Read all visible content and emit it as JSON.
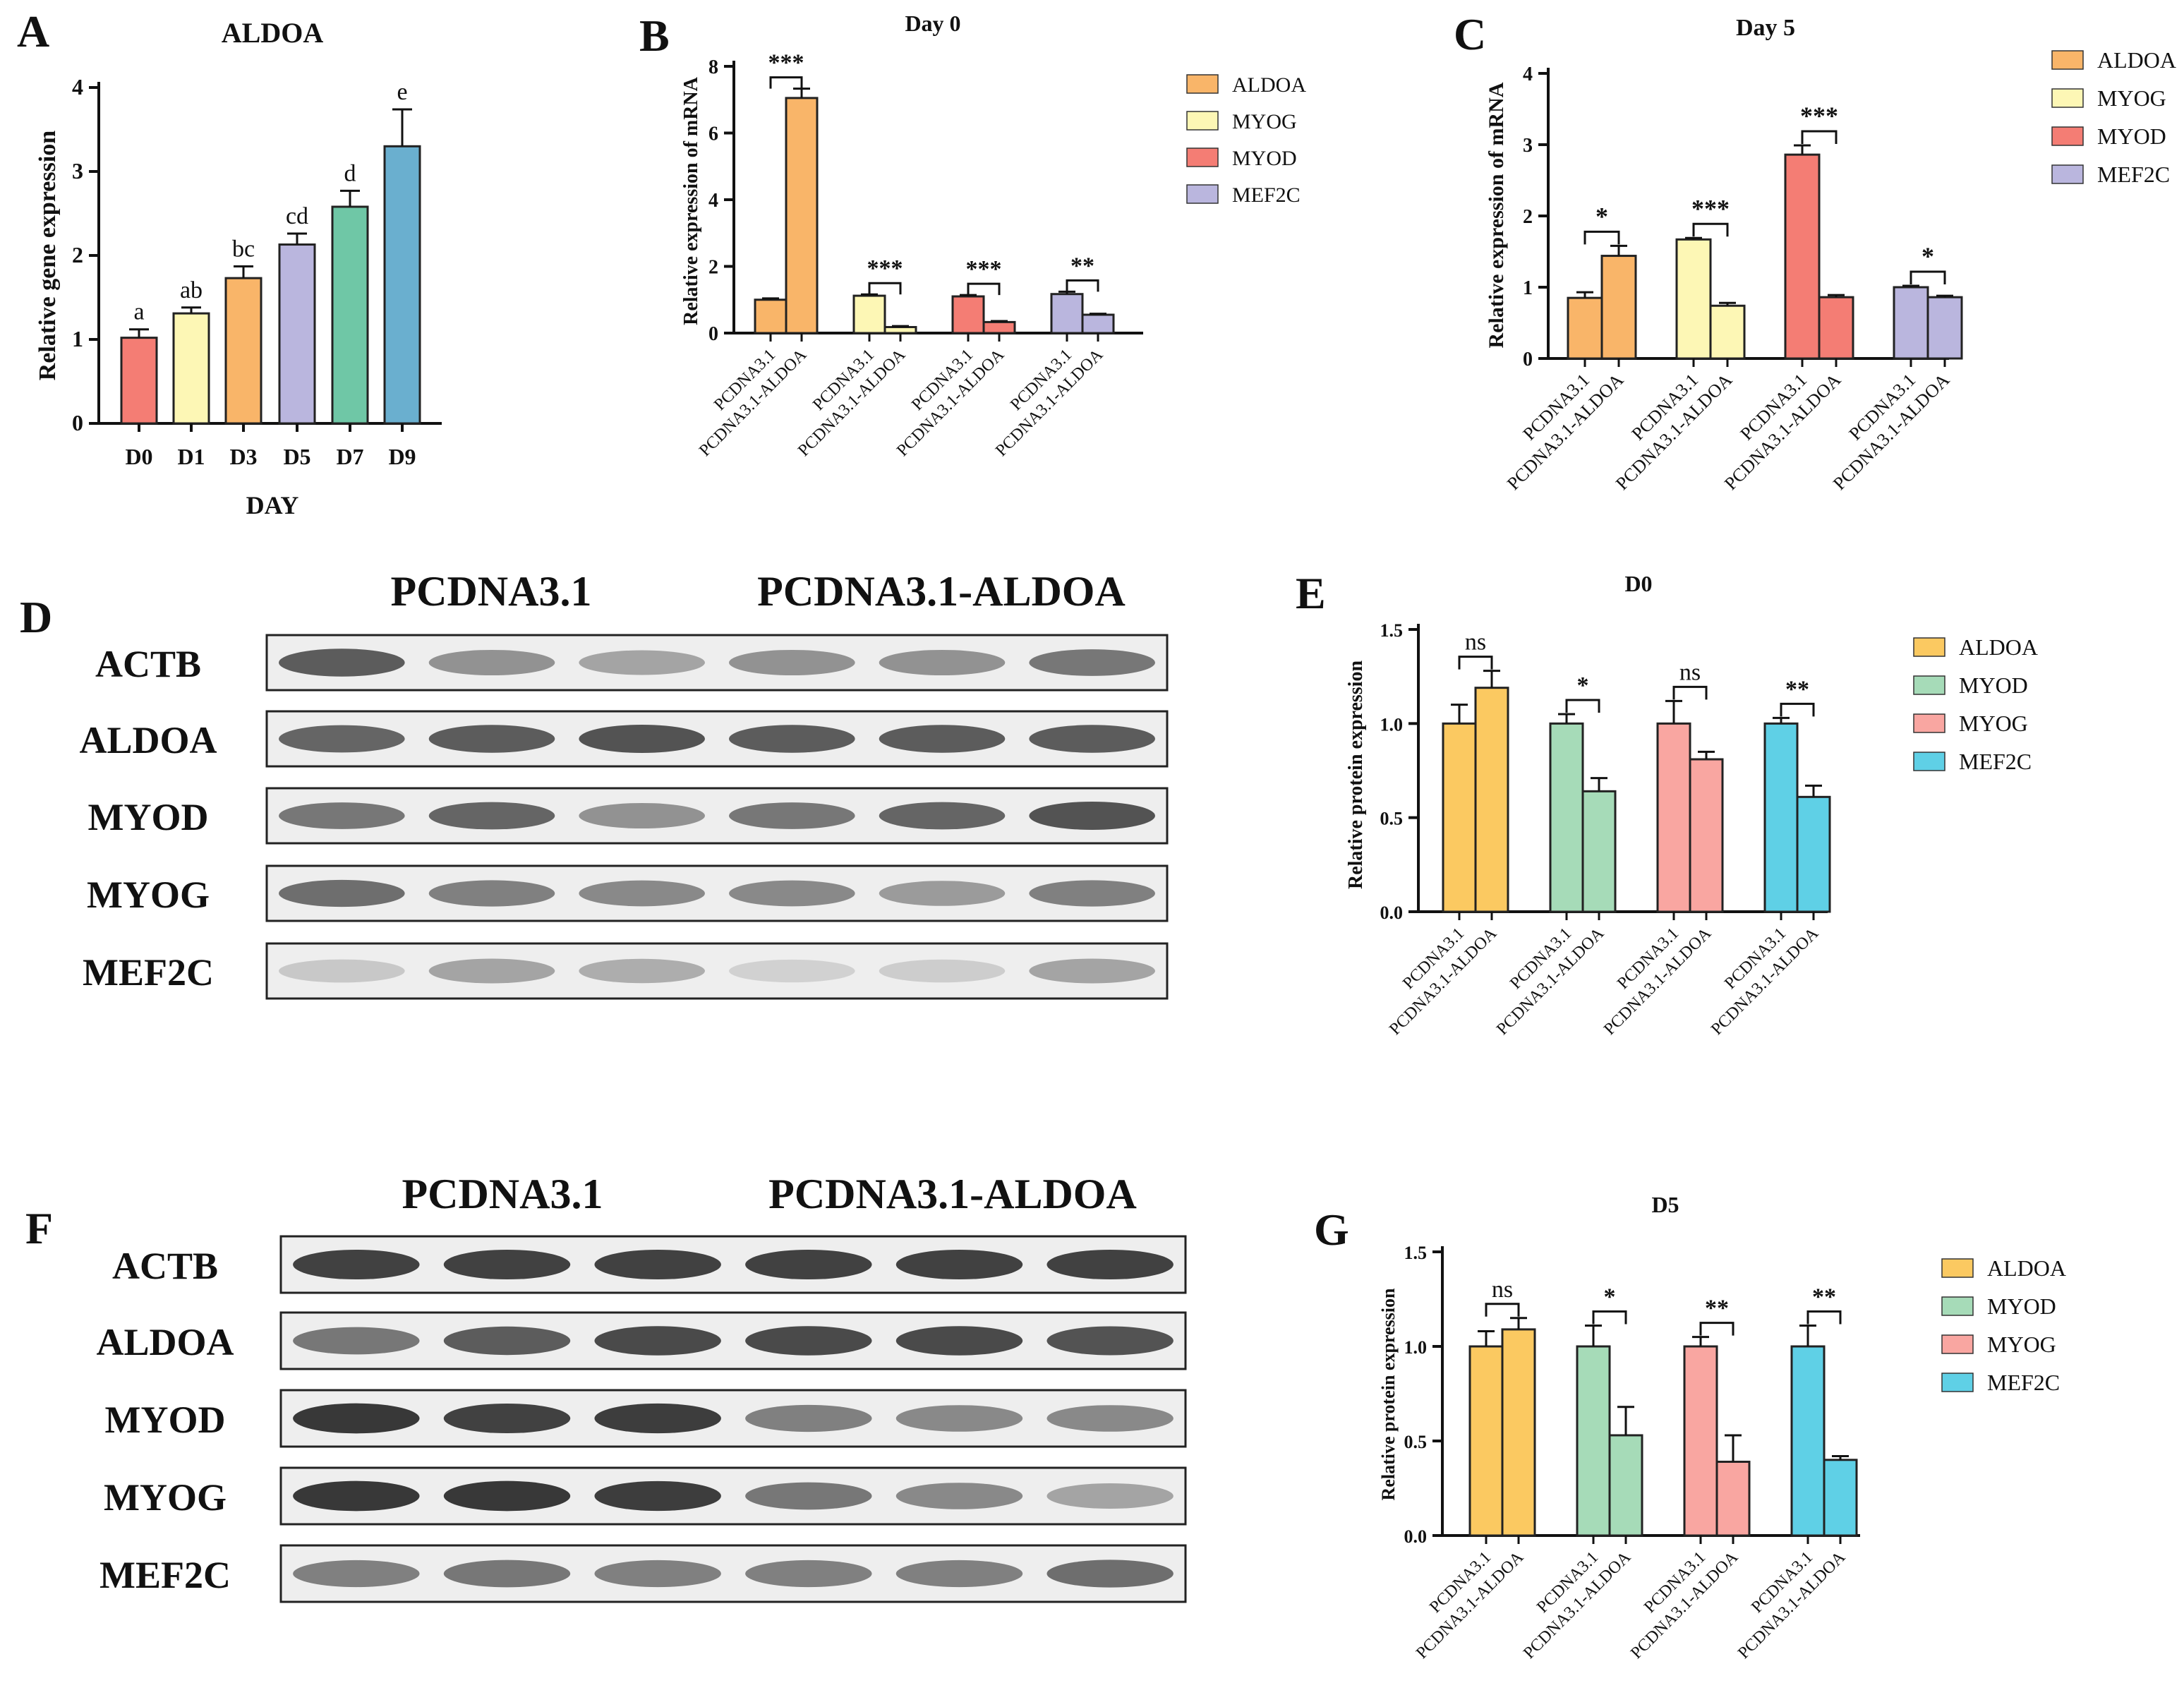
{
  "chart_data": [
    {
      "panel_letter": "A",
      "type": "bar",
      "title": "ALDOA",
      "xlabel": "DAY",
      "ylabel": "Relative gene expression",
      "ylim": [
        0,
        4
      ],
      "yticks": [
        "0",
        "1",
        "2",
        "3",
        "4"
      ],
      "categories": [
        "D0",
        "D1",
        "D3",
        "D5",
        "D7",
        "D9"
      ],
      "values": [
        1.02,
        1.31,
        1.73,
        2.13,
        2.58,
        3.3
      ],
      "errors": [
        0.1,
        0.07,
        0.14,
        0.13,
        0.19,
        0.44
      ],
      "significance": [
        "a",
        "ab",
        "bc",
        "cd",
        "d",
        "e"
      ],
      "colors": [
        "#F47D74",
        "#FDF7B5",
        "#F9B569",
        "#BAB6DE",
        "#6FC7A6",
        "#6AAFCF"
      ],
      "grid": false
    },
    {
      "panel_letter": "B",
      "type": "bar",
      "title": "Day 0",
      "ylabel": "Relative expression of mRNA",
      "ylim": [
        0,
        8
      ],
      "yticks": [
        "0",
        "2",
        "4",
        "6",
        "8"
      ],
      "legend_position": "right",
      "group_labels": [
        "PCDNA3.1",
        "PCDNA3.1-ALDOA"
      ],
      "series": [
        {
          "name": "ALDOA",
          "color": "#F9B569",
          "values": [
            1.0,
            7.05
          ],
          "errors": [
            0.04,
            0.28
          ],
          "significance": "***"
        },
        {
          "name": "MYOG",
          "color": "#FDF7B5",
          "values": [
            1.12,
            0.18
          ],
          "errors": [
            0.04,
            0.03
          ],
          "significance": "***"
        },
        {
          "name": "MYOD",
          "color": "#F47D74",
          "values": [
            1.1,
            0.33
          ],
          "errors": [
            0.04,
            0.03
          ],
          "significance": "***"
        },
        {
          "name": "MEF2C",
          "color": "#BAB6DE",
          "values": [
            1.17,
            0.55
          ],
          "errors": [
            0.07,
            0.03
          ],
          "significance": "**"
        }
      ]
    },
    {
      "panel_letter": "C",
      "type": "bar",
      "title": "Day 5",
      "ylabel": "Relative expression of mRNA",
      "ylim": [
        0,
        4
      ],
      "yticks": [
        "0",
        "1",
        "2",
        "3",
        "4"
      ],
      "legend_position": "right",
      "group_labels": [
        "PCDNA3.1",
        "PCDNA3.1-ALDOA"
      ],
      "series": [
        {
          "name": "ALDOA",
          "color": "#F9B569",
          "values": [
            0.85,
            1.44
          ],
          "errors": [
            0.08,
            0.14
          ],
          "significance": "*"
        },
        {
          "name": "MYOG",
          "color": "#FDF7B5",
          "values": [
            1.67,
            0.74
          ],
          "errors": [
            0.02,
            0.04
          ],
          "significance": "***"
        },
        {
          "name": "MYOD",
          "color": "#F47D74",
          "values": [
            2.86,
            0.86
          ],
          "errors": [
            0.13,
            0.03
          ],
          "significance": "***"
        },
        {
          "name": "MEF2C",
          "color": "#BAB6DE",
          "values": [
            1.0,
            0.86
          ],
          "errors": [
            0.02,
            0.02
          ],
          "significance": "*"
        }
      ]
    },
    {
      "panel_letter": "E",
      "type": "bar",
      "title": "D0",
      "ylabel": "Relative protein expression",
      "ylim": [
        0,
        1.5
      ],
      "yticks": [
        "0.0",
        "0.5",
        "1.0",
        "1.5"
      ],
      "legend_position": "right",
      "group_labels": [
        "PCDNA3.1",
        "PCDNA3.1-ALDOA"
      ],
      "series": [
        {
          "name": "ALDOA",
          "color": "#FBC961",
          "values": [
            1.0,
            1.19
          ],
          "errors": [
            0.1,
            0.09
          ],
          "significance": "ns"
        },
        {
          "name": "MYOD",
          "color": "#A6DBB8",
          "values": [
            1.0,
            0.64
          ],
          "errors": [
            0.05,
            0.07
          ],
          "significance": "*"
        },
        {
          "name": "MYOG",
          "color": "#F9A6A1",
          "values": [
            1.0,
            0.81
          ],
          "errors": [
            0.12,
            0.04
          ],
          "significance": "ns"
        },
        {
          "name": "MEF2C",
          "color": "#5FD0E6",
          "values": [
            1.0,
            0.61
          ],
          "errors": [
            0.03,
            0.06
          ],
          "significance": "**"
        }
      ]
    },
    {
      "panel_letter": "G",
      "type": "bar",
      "title": "D5",
      "ylabel": "Relative protein expression",
      "ylim": [
        0,
        1.5
      ],
      "yticks": [
        "0.0",
        "0.5",
        "1.0",
        "1.5"
      ],
      "legend_position": "right",
      "group_labels": [
        "PCDNA3.1",
        "PCDNA3.1-ALDOA"
      ],
      "series": [
        {
          "name": "ALDOA",
          "color": "#FBC961",
          "values": [
            1.0,
            1.09
          ],
          "errors": [
            0.08,
            0.06
          ],
          "significance": "ns"
        },
        {
          "name": "MYOD",
          "color": "#A6DBB8",
          "values": [
            1.0,
            0.53
          ],
          "errors": [
            0.11,
            0.15
          ],
          "significance": "*"
        },
        {
          "name": "MYOG",
          "color": "#F9A6A1",
          "values": [
            1.0,
            0.39
          ],
          "errors": [
            0.05,
            0.14
          ],
          "significance": "**"
        },
        {
          "name": "MEF2C",
          "color": "#5FD0E6",
          "values": [
            1.0,
            0.4
          ],
          "errors": [
            0.11,
            0.02
          ],
          "significance": "**"
        }
      ]
    }
  ],
  "blots": [
    {
      "panel_letter": "D",
      "group_labels": [
        "PCDNA3.1",
        "PCDNA3.1-ALDOA"
      ],
      "rows": [
        "ACTB",
        "ALDOA",
        "MYOD",
        "MYOG",
        "MEF2C"
      ],
      "intensities": [
        [
          0.75,
          0.45,
          0.35,
          0.45,
          0.45,
          0.6
        ],
        [
          0.7,
          0.75,
          0.8,
          0.75,
          0.75,
          0.75
        ],
        [
          0.6,
          0.7,
          0.45,
          0.6,
          0.7,
          0.8
        ],
        [
          0.65,
          0.55,
          0.5,
          0.5,
          0.4,
          0.55
        ],
        [
          0.15,
          0.35,
          0.3,
          0.1,
          0.12,
          0.35
        ]
      ]
    },
    {
      "panel_letter": "F",
      "group_labels": [
        "PCDNA3.1",
        "PCDNA3.1-ALDOA"
      ],
      "rows": [
        "ACTB",
        "ALDOA",
        "MYOD",
        "MYOG",
        "MEF2C"
      ],
      "intensities": [
        [
          0.9,
          0.9,
          0.9,
          0.9,
          0.9,
          0.9
        ],
        [
          0.6,
          0.75,
          0.85,
          0.85,
          0.85,
          0.8
        ],
        [
          0.95,
          0.9,
          0.92,
          0.55,
          0.5,
          0.5
        ],
        [
          0.95,
          0.95,
          0.92,
          0.6,
          0.5,
          0.35
        ],
        [
          0.55,
          0.6,
          0.55,
          0.55,
          0.55,
          0.65
        ]
      ]
    }
  ]
}
